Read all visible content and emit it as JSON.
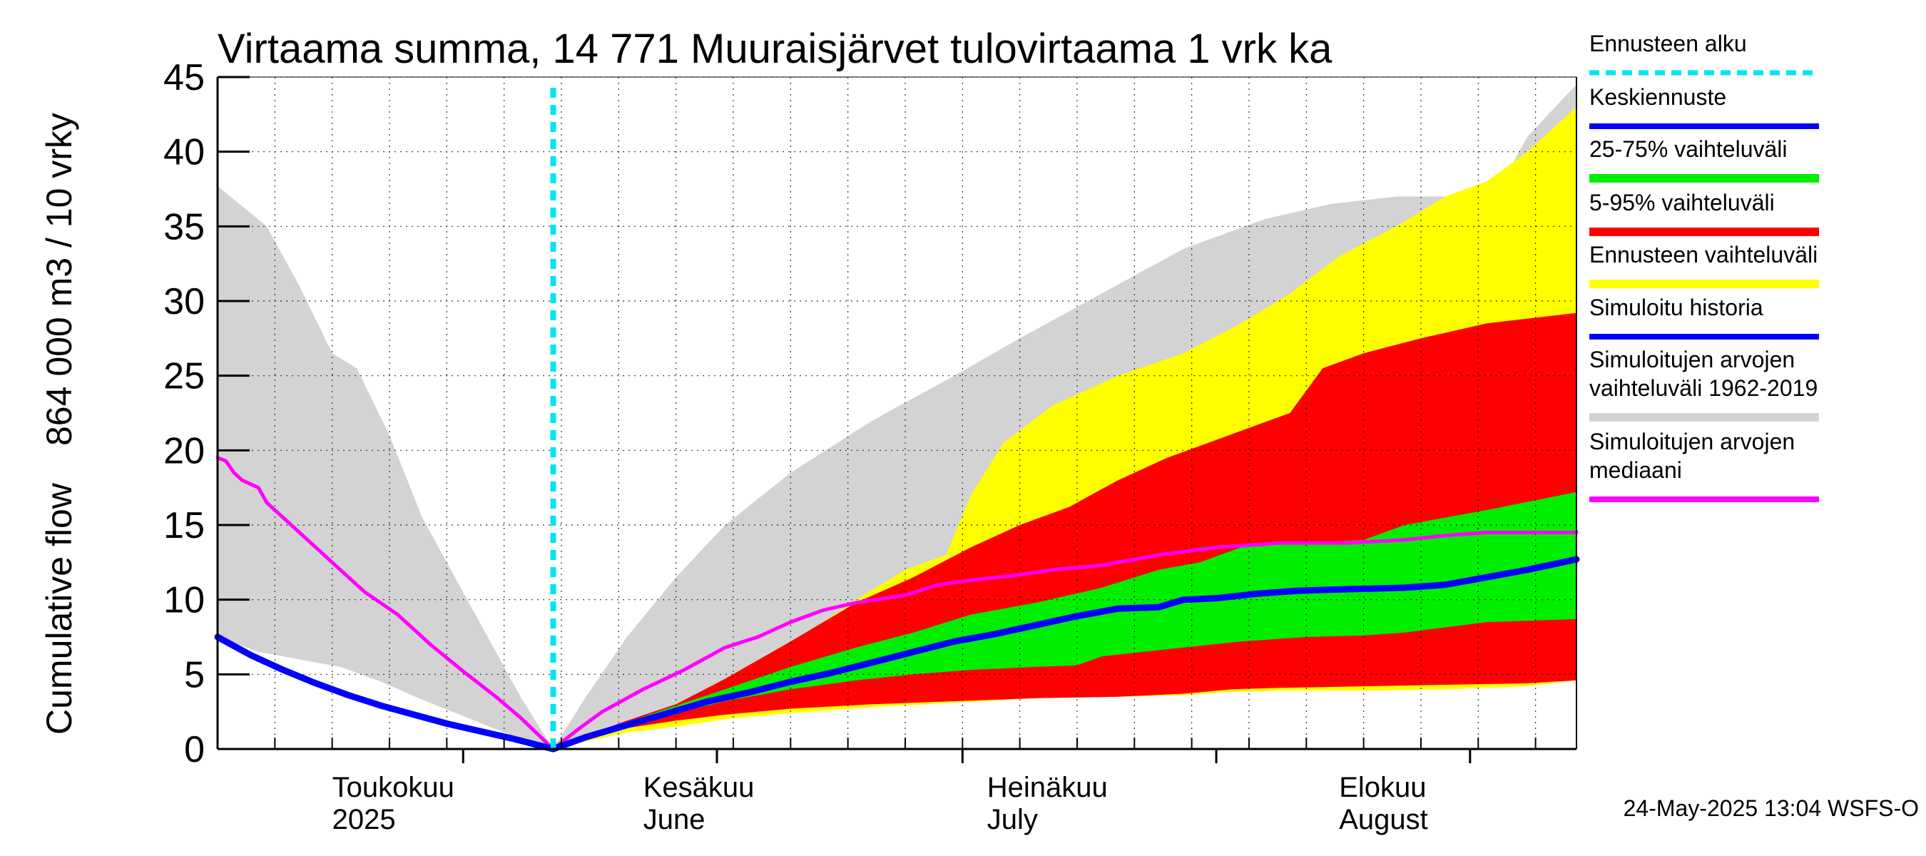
{
  "chart_data": {
    "type": "area",
    "title": "Virtaama summa, 14 771 Muuraisjärvet tulovirtaama 1 vrk ka",
    "ylabel": [
      "Cumulative flow",
      "864 000 m3 / 10 vrky"
    ],
    "ylim": [
      0,
      45
    ],
    "yticks": [
      0,
      5,
      10,
      15,
      20,
      25,
      30,
      35,
      40,
      45
    ],
    "x_unit": "days since 2025-04-01",
    "xlim": [
      0,
      166
    ],
    "forecast_start": 41,
    "month_labels": [
      {
        "label": "Toukokuu",
        "year": "2025",
        "x": 14
      },
      {
        "label": "Kesäkuu",
        "year": "June",
        "x": 52
      },
      {
        "label": "Heinäkuu",
        "year": "July",
        "x": 94
      },
      {
        "label": "Elokuu",
        "year": "August",
        "x": 137
      }
    ],
    "month_boundaries": [
      30,
      61,
      91,
      122,
      153
    ],
    "series": [
      {
        "name": "Simuloitujen arvojen vaihteluväli 1962-2019",
        "kind": "band",
        "color": "#d3d3d3",
        "upper": [
          [
            0,
            37.7
          ],
          [
            6,
            35
          ],
          [
            10,
            31
          ],
          [
            14,
            26.5
          ],
          [
            17,
            25.5
          ],
          [
            21,
            21
          ],
          [
            25,
            15.5
          ],
          [
            29,
            11.5
          ],
          [
            33,
            7.5
          ],
          [
            37,
            3.5
          ],
          [
            41,
            0
          ],
          [
            45,
            3.5
          ],
          [
            50,
            7.5
          ],
          [
            56,
            11.5
          ],
          [
            62,
            15
          ],
          [
            70,
            18.5
          ],
          [
            80,
            22
          ],
          [
            90,
            25
          ],
          [
            98,
            27.5
          ],
          [
            108,
            30.5
          ],
          [
            118,
            33.5
          ],
          [
            128,
            35.5
          ],
          [
            136,
            36.5
          ],
          [
            144,
            37
          ],
          [
            153,
            37
          ],
          [
            156,
            37
          ],
          [
            160,
            41
          ],
          [
            166,
            44.5
          ]
        ],
        "lower": [
          [
            0,
            7.5
          ],
          [
            5,
            6.5
          ],
          [
            10,
            6
          ],
          [
            15,
            5.5
          ],
          [
            20,
            4.5
          ],
          [
            25,
            3.3
          ],
          [
            30,
            2.2
          ],
          [
            35,
            1.1
          ],
          [
            41,
            0
          ],
          [
            46,
            0.9
          ],
          [
            52,
            1.6
          ],
          [
            58,
            2.1
          ],
          [
            65,
            2.6
          ],
          [
            75,
            3
          ],
          [
            85,
            3.3
          ],
          [
            95,
            3.5
          ],
          [
            105,
            3.6
          ],
          [
            118,
            3.8
          ],
          [
            130,
            4
          ],
          [
            140,
            4.2
          ],
          [
            150,
            4.3
          ],
          [
            166,
            4.6
          ]
        ]
      },
      {
        "name": "Ennusteen vaihteluväli",
        "kind": "band",
        "color": "#ffff00",
        "upper": [
          [
            41,
            0
          ],
          [
            45,
            0.9
          ],
          [
            50,
            1.8
          ],
          [
            55,
            2.8
          ],
          [
            62,
            4.5
          ],
          [
            70,
            7
          ],
          [
            78,
            10
          ],
          [
            84,
            12
          ],
          [
            89,
            13
          ],
          [
            92,
            17
          ],
          [
            96,
            20.5
          ],
          [
            102,
            23
          ],
          [
            110,
            25
          ],
          [
            118,
            26.5
          ],
          [
            125,
            28.5
          ],
          [
            131,
            30.5
          ],
          [
            137,
            33
          ],
          [
            144,
            35
          ],
          [
            150,
            37
          ],
          [
            155,
            38
          ],
          [
            160,
            40
          ],
          [
            166,
            43
          ]
        ],
        "lower": [
          [
            41,
            0
          ],
          [
            45,
            0.5
          ],
          [
            50,
            1.1
          ],
          [
            56,
            1.5
          ],
          [
            62,
            2
          ],
          [
            70,
            2.4
          ],
          [
            80,
            2.8
          ],
          [
            90,
            3.1
          ],
          [
            100,
            3.4
          ],
          [
            110,
            3.5
          ],
          [
            118,
            3.6
          ],
          [
            123,
            3.8
          ],
          [
            130,
            3.9
          ],
          [
            140,
            3.9
          ],
          [
            150,
            4
          ],
          [
            160,
            4.2
          ],
          [
            166,
            4.6
          ]
        ]
      },
      {
        "name": "5-95% vaihteluväli",
        "kind": "band",
        "color": "#ff0000",
        "upper": [
          [
            41,
            0
          ],
          [
            45,
            0.9
          ],
          [
            50,
            1.9
          ],
          [
            56,
            3
          ],
          [
            62,
            4.7
          ],
          [
            70,
            7.2
          ],
          [
            78,
            9.8
          ],
          [
            85,
            11.5
          ],
          [
            92,
            13.5
          ],
          [
            98,
            15
          ],
          [
            104,
            16.2
          ],
          [
            110,
            18
          ],
          [
            116,
            19.5
          ],
          [
            121,
            20.5
          ],
          [
            126,
            21.5
          ],
          [
            131,
            22.5
          ],
          [
            135,
            25.5
          ],
          [
            140,
            26.5
          ],
          [
            147,
            27.5
          ],
          [
            155,
            28.5
          ],
          [
            166,
            29.2
          ]
        ],
        "lower": [
          [
            41,
            0
          ],
          [
            45,
            0.7
          ],
          [
            50,
            1.4
          ],
          [
            56,
            1.9
          ],
          [
            62,
            2.3
          ],
          [
            70,
            2.7
          ],
          [
            80,
            3
          ],
          [
            90,
            3.2
          ],
          [
            100,
            3.4
          ],
          [
            110,
            3.5
          ],
          [
            118,
            3.7
          ],
          [
            124,
            4
          ],
          [
            130,
            4.1
          ],
          [
            140,
            4.2
          ],
          [
            150,
            4.3
          ],
          [
            160,
            4.4
          ],
          [
            166,
            4.6
          ]
        ]
      },
      {
        "name": "25-75% vaihteluväli",
        "kind": "band",
        "color": "#00ee00",
        "upper": [
          [
            41,
            0
          ],
          [
            45,
            0.9
          ],
          [
            50,
            1.8
          ],
          [
            56,
            2.9
          ],
          [
            62,
            4
          ],
          [
            70,
            5.5
          ],
          [
            78,
            6.8
          ],
          [
            85,
            7.8
          ],
          [
            92,
            9
          ],
          [
            100,
            9.8
          ],
          [
            108,
            10.8
          ],
          [
            115,
            12
          ],
          [
            120,
            12.5
          ],
          [
            125,
            13.5
          ],
          [
            133,
            13.8
          ],
          [
            140,
            14
          ],
          [
            145,
            15
          ],
          [
            155,
            16
          ],
          [
            166,
            17.2
          ]
        ],
        "lower": [
          [
            41,
            0
          ],
          [
            45,
            0.8
          ],
          [
            50,
            1.6
          ],
          [
            56,
            2.4
          ],
          [
            62,
            3.2
          ],
          [
            70,
            4
          ],
          [
            78,
            4.6
          ],
          [
            85,
            5
          ],
          [
            92,
            5.3
          ],
          [
            100,
            5.5
          ],
          [
            105,
            5.6
          ],
          [
            108,
            6.2
          ],
          [
            113,
            6.5
          ],
          [
            118,
            6.8
          ],
          [
            125,
            7.2
          ],
          [
            133,
            7.5
          ],
          [
            140,
            7.6
          ],
          [
            145,
            7.8
          ],
          [
            155,
            8.5
          ],
          [
            166,
            8.7
          ]
        ]
      },
      {
        "name": "Simuloitujen arvojen mediaani",
        "kind": "line",
        "color": "#ff00ff",
        "width": 5,
        "points": [
          [
            0,
            19.5
          ],
          [
            1,
            19.3
          ],
          [
            2,
            18.5
          ],
          [
            3,
            18
          ],
          [
            5,
            17.5
          ],
          [
            6,
            16.5
          ],
          [
            8,
            15.5
          ],
          [
            10,
            14.5
          ],
          [
            13,
            13
          ],
          [
            15,
            12
          ],
          [
            18,
            10.5
          ],
          [
            22,
            9
          ],
          [
            26,
            7
          ],
          [
            30,
            5.2
          ],
          [
            34,
            3.5
          ],
          [
            37,
            2.1
          ],
          [
            41,
            0
          ],
          [
            44,
            1.3
          ],
          [
            47,
            2.5
          ],
          [
            52,
            4
          ],
          [
            57,
            5.3
          ],
          [
            62,
            6.8
          ],
          [
            66,
            7.5
          ],
          [
            70,
            8.5
          ],
          [
            74,
            9.3
          ],
          [
            78,
            9.8
          ],
          [
            84,
            10.3
          ],
          [
            88,
            11
          ],
          [
            92,
            11.3
          ],
          [
            97,
            11.6
          ],
          [
            102,
            12
          ],
          [
            108,
            12.3
          ],
          [
            115,
            13
          ],
          [
            122,
            13.5
          ],
          [
            130,
            13.8
          ],
          [
            138,
            13.8
          ],
          [
            145,
            14
          ],
          [
            150,
            14.3
          ],
          [
            155,
            14.5
          ],
          [
            166,
            14.5
          ]
        ]
      },
      {
        "name": "Simuloitu historia",
        "kind": "line",
        "color": "#0000ff",
        "width": 9,
        "points": [
          [
            0,
            7.5
          ],
          [
            4,
            6.3
          ],
          [
            8,
            5.3
          ],
          [
            12,
            4.4
          ],
          [
            16,
            3.6
          ],
          [
            20,
            2.9
          ],
          [
            24,
            2.3
          ],
          [
            28,
            1.7
          ],
          [
            32,
            1.2
          ],
          [
            36,
            0.7
          ],
          [
            41,
            0
          ]
        ]
      },
      {
        "name": "Keskiennuste",
        "kind": "line",
        "color": "#0000ff",
        "width": 9,
        "points": [
          [
            41,
            0
          ],
          [
            45,
            0.8
          ],
          [
            50,
            1.6
          ],
          [
            55,
            2.4
          ],
          [
            60,
            3.2
          ],
          [
            65,
            3.8
          ],
          [
            70,
            4.5
          ],
          [
            75,
            5.1
          ],
          [
            80,
            5.8
          ],
          [
            85,
            6.5
          ],
          [
            90,
            7.2
          ],
          [
            95,
            7.7
          ],
          [
            100,
            8.3
          ],
          [
            105,
            8.9
          ],
          [
            110,
            9.4
          ],
          [
            115,
            9.5
          ],
          [
            118,
            10
          ],
          [
            122,
            10.1
          ],
          [
            127,
            10.4
          ],
          [
            132,
            10.6
          ],
          [
            138,
            10.7
          ],
          [
            145,
            10.8
          ],
          [
            150,
            11
          ],
          [
            155,
            11.5
          ],
          [
            160,
            12
          ],
          [
            166,
            12.7
          ]
        ]
      },
      {
        "name": "Ennusteen alku",
        "kind": "vline",
        "color": "#00e5ee",
        "x": 41
      }
    ]
  },
  "legend": [
    {
      "label": "Ennusteen alku",
      "color": "#00e5ee",
      "style": "dashed"
    },
    {
      "label": "Keskiennuste",
      "color": "#0000ff",
      "style": "line"
    },
    {
      "label": "25-75% vaihteluväli",
      "color": "#00ee00",
      "style": "band"
    },
    {
      "label": "5-95% vaihteluväli",
      "color": "#ff0000",
      "style": "band"
    },
    {
      "label": "Ennusteen vaihteluväli",
      "color": "#ffff00",
      "style": "band"
    },
    {
      "label": "Simuloitu historia",
      "color": "#0000ff",
      "style": "line"
    },
    {
      "label": "Simuloitujen arvojen vaihteluväli 1962-2019",
      "label_lines": [
        "Simuloitujen arvojen",
        "vaihteluväli 1962-2019"
      ],
      "color": "#d3d3d3",
      "style": "band"
    },
    {
      "label": "Simuloitujen arvojen mediaani",
      "label_lines": [
        "Simuloitujen arvojen",
        "mediaani"
      ],
      "color": "#ff00ff",
      "style": "line"
    }
  ],
  "footer": "24-May-2025 13:04 WSFS-O"
}
